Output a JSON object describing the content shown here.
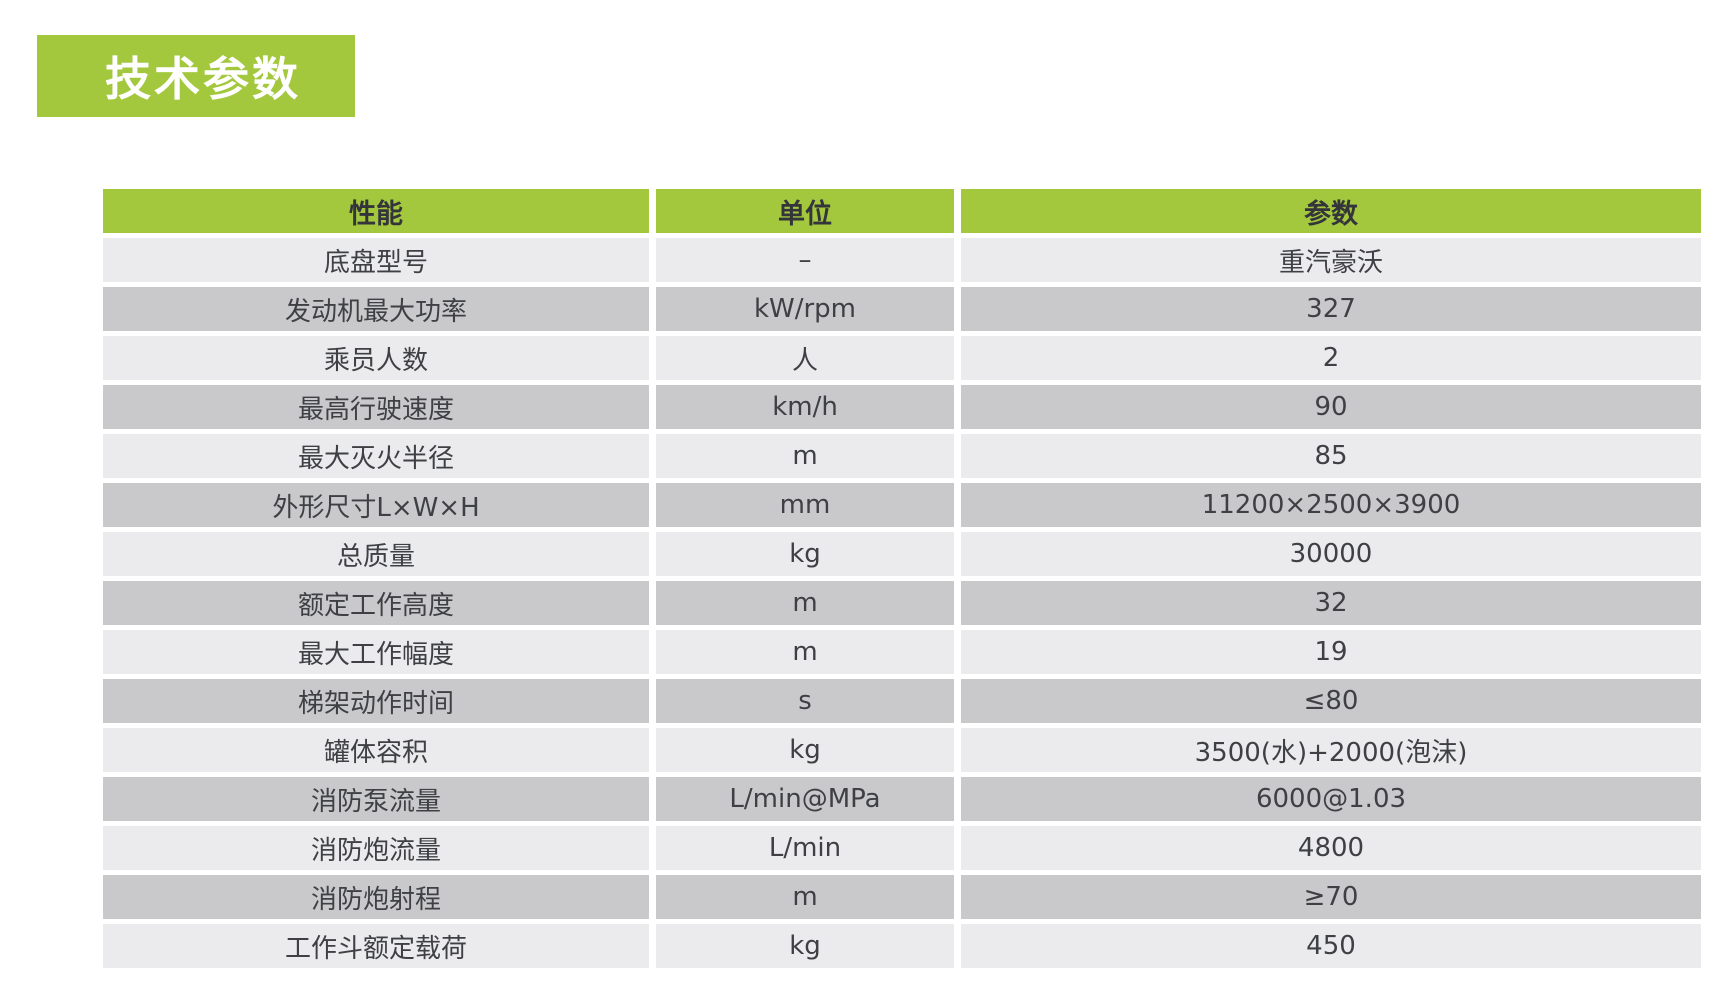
{
  "title": {
    "text": "技术参数"
  },
  "colors": {
    "accent_green": "#a3c83e",
    "title_text": "#ffffff",
    "header_text": "#34353a",
    "row_text": "#3f4043",
    "row_light": "#ebebed",
    "row_dark": "#c9c9cb"
  },
  "table": {
    "columns": [
      {
        "label": "性能"
      },
      {
        "label": "单位"
      },
      {
        "label": "参数"
      }
    ],
    "rows": [
      {
        "name": "底盘型号",
        "unit": "–",
        "value": "重汽豪沃"
      },
      {
        "name": "发动机最大功率",
        "unit": "kW/rpm",
        "value": "327"
      },
      {
        "name": "乘员人数",
        "unit": "人",
        "value": "2"
      },
      {
        "name": "最高行驶速度",
        "unit": "km/h",
        "value": "90"
      },
      {
        "name": "最大灭火半径",
        "unit": "m",
        "value": "85"
      },
      {
        "name": "外形尺寸L×W×H",
        "unit": "mm",
        "value": "11200×2500×3900"
      },
      {
        "name": "总质量",
        "unit": "kg",
        "value": "30000"
      },
      {
        "name": "额定工作高度",
        "unit": "m",
        "value": "32"
      },
      {
        "name": "最大工作幅度",
        "unit": "m",
        "value": "19"
      },
      {
        "name": "梯架动作时间",
        "unit": "s",
        "value": "≤80"
      },
      {
        "name": "罐体容积",
        "unit": "kg",
        "value": "3500(水)+2000(泡沫)"
      },
      {
        "name": "消防泵流量",
        "unit": "L/min@MPa",
        "value": "6000@1.03"
      },
      {
        "name": "消防炮流量",
        "unit": "L/min",
        "value": "4800"
      },
      {
        "name": "消防炮射程",
        "unit": "m",
        "value": "≥70"
      },
      {
        "name": "工作斗额定载荷",
        "unit": "kg",
        "value": "450"
      }
    ]
  }
}
